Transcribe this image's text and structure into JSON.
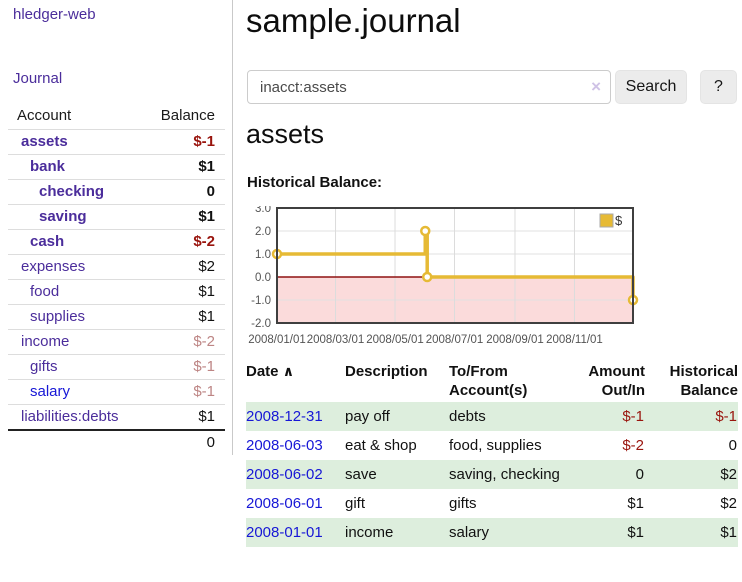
{
  "colors": {
    "link-purple": "#4b2d9b",
    "link-blue": "#1717d6",
    "neg-strong": "#99140d",
    "neg-muted": "#bd8584",
    "row-green": "#ddeedd",
    "btn-bg": "#ececec",
    "chart-neg-bg": "#fbdbdb",
    "chart-zero": "#8f1212"
  },
  "sidebar": {
    "app_title": "hledger-web",
    "journal_link": "Journal",
    "accounts": {
      "headers": {
        "account": "Account",
        "balance": "Balance"
      },
      "rows": [
        {
          "name": "assets",
          "level": 0,
          "balance": "$-1",
          "bold": true,
          "name_style": "purple",
          "balance_style": "neg-strong"
        },
        {
          "name": "bank",
          "level": 1,
          "balance": "$1",
          "bold": true,
          "name_style": "purple",
          "balance_style": "pos"
        },
        {
          "name": "checking",
          "level": 2,
          "balance": "0",
          "bold": true,
          "name_style": "purple",
          "balance_style": "pos"
        },
        {
          "name": "saving",
          "level": 2,
          "balance": "$1",
          "bold": true,
          "name_style": "purple",
          "balance_style": "pos"
        },
        {
          "name": "cash",
          "level": 1,
          "balance": "$-2",
          "bold": true,
          "name_style": "purple",
          "balance_style": "neg-strong"
        },
        {
          "name": "expenses",
          "level": 0,
          "balance": "$2",
          "bold": false,
          "name_style": "purple",
          "balance_style": "pos"
        },
        {
          "name": "food",
          "level": 1,
          "balance": "$1",
          "bold": false,
          "name_style": "purple",
          "balance_style": "pos"
        },
        {
          "name": "supplies",
          "level": 1,
          "balance": "$1",
          "bold": false,
          "name_style": "purple",
          "balance_style": "pos"
        },
        {
          "name": "income",
          "level": 0,
          "balance": "$-2",
          "bold": false,
          "name_style": "purple",
          "balance_style": "neg-muted"
        },
        {
          "name": "gifts",
          "level": 1,
          "balance": "$-1",
          "bold": false,
          "name_style": "purple",
          "balance_style": "neg-muted"
        },
        {
          "name": "salary",
          "level": 1,
          "balance": "$-1",
          "bold": false,
          "name_style": "blue",
          "balance_style": "neg-muted"
        },
        {
          "name": "liabilities:debts",
          "level": 0,
          "balance": "$1",
          "bold": false,
          "name_style": "purple",
          "balance_style": "pos"
        }
      ],
      "total": "0"
    }
  },
  "main": {
    "title": "sample.journal",
    "search": {
      "value": "inacct:assets",
      "clear_icon": "×",
      "button_label": "Search",
      "help_label": "?"
    },
    "account_heading": "assets",
    "chart_label": "Historical Balance:"
  },
  "chart_data": {
    "type": "line",
    "line_style": "step",
    "title": "Historical Balance",
    "series": [
      {
        "name": "$",
        "color": "#e6ba35",
        "points": [
          {
            "date": "2008-01-01",
            "value": 1
          },
          {
            "date": "2008-06-01",
            "value": 2
          },
          {
            "date": "2008-06-03",
            "value": 0
          },
          {
            "date": "2008-12-31",
            "value": -1
          }
        ]
      }
    ],
    "xlim": [
      "2008-01-01",
      "2008-12-31"
    ],
    "ylim": [
      -2,
      3
    ],
    "yticks": [
      "3.0",
      "2.0",
      "1.0",
      "0.0",
      "-1.0",
      "-2.0"
    ],
    "xticks": [
      {
        "date": "2008-01-01",
        "label": "2008/01/01"
      },
      {
        "date": "2008-03-01",
        "label": "2008/03/01"
      },
      {
        "date": "2008-05-01",
        "label": "2008/05/01"
      },
      {
        "date": "2008-07-01",
        "label": "2008/07/01"
      },
      {
        "date": "2008-09-01",
        "label": "2008/09/01"
      },
      {
        "date": "2008-11-01",
        "label": "2008/11/01"
      }
    ],
    "legend": {
      "label": "$",
      "position": "top-right"
    },
    "grid": true,
    "negative_region_shaded": true
  },
  "transactions": {
    "headers": {
      "date": "Date",
      "sort_icon": "∧",
      "description": "Description",
      "accounts": "To/From\nAccount(s)",
      "amount": "Amount\nOut/In",
      "balance": "Historical\nBalance"
    },
    "rows": [
      {
        "date": "2008-12-31",
        "description": "pay off",
        "accounts": "debts",
        "amount": "$-1",
        "balance": "$-1",
        "amount_neg": true,
        "balance_neg": true,
        "highlight": true
      },
      {
        "date": "2008-06-03",
        "description": "eat & shop",
        "accounts": "food, supplies",
        "amount": "$-2",
        "balance": "0",
        "amount_neg": true,
        "balance_neg": false,
        "highlight": false
      },
      {
        "date": "2008-06-02",
        "description": "save",
        "accounts": "saving, checking",
        "amount": "0",
        "balance": "$2",
        "amount_neg": false,
        "balance_neg": false,
        "highlight": true
      },
      {
        "date": "2008-06-01",
        "description": "gift",
        "accounts": "gifts",
        "amount": "$1",
        "balance": "$2",
        "amount_neg": false,
        "balance_neg": false,
        "highlight": false
      },
      {
        "date": "2008-01-01",
        "description": "income",
        "accounts": "salary",
        "amount": "$1",
        "balance": "$1",
        "amount_neg": false,
        "balance_neg": false,
        "highlight": true
      }
    ]
  }
}
